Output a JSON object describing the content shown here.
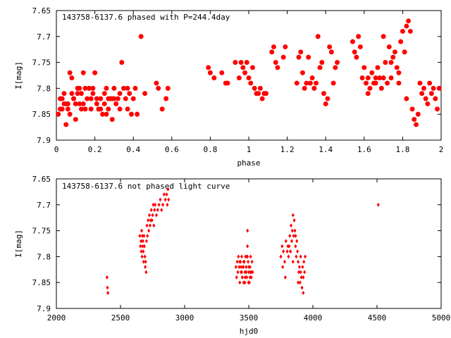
{
  "chart_data": [
    {
      "type": "scatter",
      "title": "143758-6137.6 phased with P=244.4day",
      "xlabel": "phase",
      "ylabel": "I[mag]",
      "xlim": [
        0,
        2
      ],
      "ylim": [
        7.65,
        7.9
      ],
      "y_inverted": true,
      "xticks": [
        "0",
        "0.2",
        "0.4",
        "0.6",
        "0.8",
        "1",
        "1.2",
        "1.4",
        "1.6",
        "1.8",
        "2"
      ],
      "yticks": [
        "7.65",
        "7.7",
        "7.75",
        "7.8",
        "7.85",
        "7.9"
      ],
      "grid": false,
      "marker_color": "#ff0000",
      "series": [
        {
          "x": [
            0.01,
            0.02,
            0.03,
            0.04,
            0.05,
            0.06,
            0.07,
            0.08,
            0.09,
            0.1,
            0.11,
            0.12,
            0.13,
            0.14,
            0.15,
            0.16,
            0.17,
            0.18,
            0.19,
            0.2,
            0.21,
            0.22,
            0.23,
            0.24,
            0.25,
            0.26,
            0.27,
            0.28,
            0.29,
            0.3,
            0.31,
            0.32,
            0.33,
            0.34,
            0.35,
            0.36,
            0.37,
            0.38,
            0.39,
            0.4,
            0.41,
            0.42,
            0.44,
            0.46,
            0.52,
            0.53,
            0.55,
            0.57,
            0.58,
            0.03,
            0.06,
            0.08,
            0.1,
            0.12,
            0.14,
            0.18,
            0.22,
            0.26,
            0.3,
            0.02,
            0.05,
            0.09,
            0.13,
            0.17,
            0.21,
            0.25,
            0.29,
            0.33,
            0.37,
            0.04,
            0.07,
            0.11,
            0.15,
            0.19,
            0.23,
            0.27,
            0.79,
            0.8,
            0.82,
            0.86,
            0.88,
            0.89,
            0.93,
            0.95,
            0.96,
            0.97,
            0.98,
            0.99,
            1.0,
            1.01,
            1.02,
            1.03,
            1.04,
            1.05,
            1.06,
            1.07,
            1.08,
            1.09,
            1.12,
            1.13,
            1.14,
            1.15,
            1.18,
            1.19,
            1.25,
            1.26,
            1.27,
            1.28,
            1.29,
            1.3,
            1.31,
            1.32,
            1.33,
            1.34,
            1.35,
            1.36,
            1.37,
            1.38,
            1.39,
            1.4,
            1.41,
            1.42,
            1.43,
            1.44,
            1.45,
            1.46,
            1.54,
            1.55,
            1.56,
            1.57,
            1.58,
            1.59,
            1.6,
            1.61,
            1.62,
            1.63,
            1.64,
            1.65,
            1.66,
            1.67,
            1.68,
            1.69,
            1.7,
            1.71,
            1.72,
            1.73,
            1.74,
            1.75,
            1.76,
            1.77,
            1.78,
            1.79,
            1.8,
            1.81,
            1.82,
            1.83,
            1.84,
            1.85,
            1.86,
            1.87,
            1.88,
            1.89,
            1.9,
            1.91,
            1.92,
            1.93,
            1.94,
            1.95,
            1.96,
            1.97,
            1.98,
            1.99,
            1.62,
            1.66,
            1.7,
            1.74,
            1.78,
            1.82
          ],
          "y": [
            7.85,
            7.82,
            7.84,
            7.81,
            7.87,
            7.83,
            7.77,
            7.78,
            7.82,
            7.86,
            7.8,
            7.83,
            7.84,
            7.77,
            7.8,
            7.82,
            7.8,
            7.84,
            7.81,
            7.77,
            7.83,
            7.84,
            7.82,
            7.85,
            7.83,
            7.8,
            7.84,
            7.82,
            7.86,
            7.8,
            7.83,
            7.82,
            7.81,
            7.75,
            7.8,
            7.82,
            7.84,
            7.81,
            7.85,
            7.82,
            7.8,
            7.85,
            7.7,
            7.81,
            7.79,
            7.8,
            7.84,
            7.82,
            7.8,
            7.82,
            7.84,
            7.81,
            7.83,
            7.8,
            7.83,
            7.82,
            7.84,
            7.85,
            7.82,
            7.84,
            7.83,
            7.82,
            7.81,
            7.8,
            7.82,
            7.81,
            7.82,
            7.84,
            7.8,
            7.83,
            7.85,
            7.81,
            7.84,
            7.8,
            7.84,
            7.82,
            7.76,
            7.77,
            7.78,
            7.77,
            7.79,
            7.79,
            7.75,
            7.78,
            7.75,
            7.76,
            7.77,
            7.75,
            7.78,
            7.79,
            7.76,
            7.8,
            7.81,
            7.81,
            7.8,
            7.82,
            7.81,
            7.81,
            7.73,
            7.72,
            7.75,
            7.76,
            7.74,
            7.72,
            7.79,
            7.74,
            7.73,
            7.77,
            7.8,
            7.79,
            7.74,
            7.79,
            7.78,
            7.8,
            7.79,
            7.7,
            7.76,
            7.75,
            7.81,
            7.83,
            7.82,
            7.72,
            7.73,
            7.79,
            7.76,
            7.75,
            7.71,
            7.73,
            7.74,
            7.7,
            7.72,
            7.78,
            7.76,
            7.79,
            7.78,
            7.8,
            7.77,
            7.79,
            7.78,
            7.76,
            7.78,
            7.8,
            7.7,
            7.75,
            7.79,
            7.72,
            7.78,
            7.74,
            7.73,
            7.76,
            7.77,
            7.71,
            7.69,
            7.73,
            7.68,
            7.67,
            7.69,
            7.84,
            7.86,
            7.87,
            7.85,
            7.79,
            7.81,
            7.8,
            7.82,
            7.83,
            7.79,
            7.81,
            7.8,
            7.82,
            7.84,
            7.8,
            7.81,
            7.79,
            7.78,
            7.75,
            7.79,
            7.82
          ]
        }
      ]
    },
    {
      "type": "scatter",
      "title": "143758-6137.6 not phased light curve",
      "xlabel": "hjd0",
      "ylabel": "I[mag]",
      "xlim": [
        2000,
        5000
      ],
      "ylim": [
        7.65,
        7.9
      ],
      "y_inverted": true,
      "xticks": [
        "2000",
        "2500",
        "3000",
        "3500",
        "4000",
        "4500",
        "5000"
      ],
      "yticks": [
        "7.65",
        "7.7",
        "7.75",
        "7.8",
        "7.85",
        "7.9"
      ],
      "grid": false,
      "marker_color": "#ff0000",
      "series": [
        {
          "x": [
            2395,
            2398,
            2402,
            2650,
            2655,
            2660,
            2662,
            2665,
            2668,
            2670,
            2672,
            2675,
            2678,
            2680,
            2683,
            2686,
            2690,
            2693,
            2696,
            2700,
            2703,
            2706,
            2710,
            2715,
            2720,
            2725,
            2730,
            2735,
            2740,
            2745,
            2750,
            2755,
            2760,
            2765,
            2770,
            2780,
            2790,
            2800,
            2810,
            2820,
            2830,
            2840,
            2850,
            2860,
            2865,
            2870,
            2875,
            3400,
            3405,
            3410,
            3415,
            3420,
            3425,
            3430,
            3435,
            3440,
            3445,
            3450,
            3455,
            3460,
            3465,
            3470,
            3475,
            3480,
            3485,
            3490,
            3495,
            3500,
            3505,
            3510,
            3515,
            3520,
            3525,
            3530,
            3440,
            3450,
            3460,
            3470,
            3480,
            3490,
            3500,
            3510,
            3520,
            3430,
            3445,
            3458,
            3472,
            3486,
            3498,
            3512,
            3490,
            3750,
            3760,
            3770,
            3780,
            3790,
            3800,
            3810,
            3815,
            3820,
            3825,
            3830,
            3835,
            3840,
            3845,
            3850,
            3855,
            3860,
            3865,
            3870,
            3875,
            3880,
            3885,
            3890,
            3895,
            3900,
            3905,
            3910,
            3915,
            3920,
            3925,
            3930,
            3935,
            3940,
            3765,
            3785,
            3805,
            3825,
            3845,
            3865,
            3885,
            3905,
            3925,
            4510
          ],
          "y": [
            7.84,
            7.86,
            7.87,
            7.76,
            7.78,
            7.77,
            7.79,
            7.75,
            7.8,
            7.76,
            7.78,
            7.77,
            7.79,
            7.81,
            7.76,
            7.78,
            7.8,
            7.82,
            7.81,
            7.83,
            7.77,
            7.74,
            7.76,
            7.73,
            7.75,
            7.72,
            7.74,
            7.73,
            7.71,
            7.73,
            7.72,
            7.7,
            7.74,
            7.71,
            7.7,
            7.72,
            7.71,
            7.7,
            7.69,
            7.71,
            7.7,
            7.68,
            7.69,
            7.68,
            7.7,
            7.67,
            7.69,
            7.82,
            7.84,
            7.81,
            7.83,
            7.8,
            7.82,
            7.85,
            7.81,
            7.83,
            7.8,
            7.84,
            7.82,
            7.85,
            7.81,
            7.83,
            7.8,
            7.82,
            7.84,
            7.75,
            7.81,
            7.83,
            7.85,
            7.82,
            7.8,
            7.84,
            7.81,
            7.83,
            7.82,
            7.84,
            7.81,
            7.85,
            7.83,
            7.8,
            7.82,
            7.84,
            7.83,
            7.81,
            7.83,
            7.82,
            7.84,
            7.8,
            7.85,
            7.83,
            7.78,
            7.8,
            7.78,
            7.79,
            7.81,
            7.77,
            7.79,
            7.8,
            7.78,
            7.76,
            7.79,
            7.74,
            7.77,
            7.75,
            7.72,
            7.76,
            7.73,
            7.75,
            7.78,
            7.8,
            7.77,
            7.79,
            7.81,
            7.83,
            7.82,
            7.85,
            7.8,
            7.84,
            7.86,
            7.82,
            7.84,
            7.81,
            7.83,
            7.8,
            7.82,
            7.84,
            7.78,
            7.79,
            7.81,
            7.76,
            7.85,
            7.83,
            7.87,
            7.7
          ]
        }
      ]
    }
  ]
}
